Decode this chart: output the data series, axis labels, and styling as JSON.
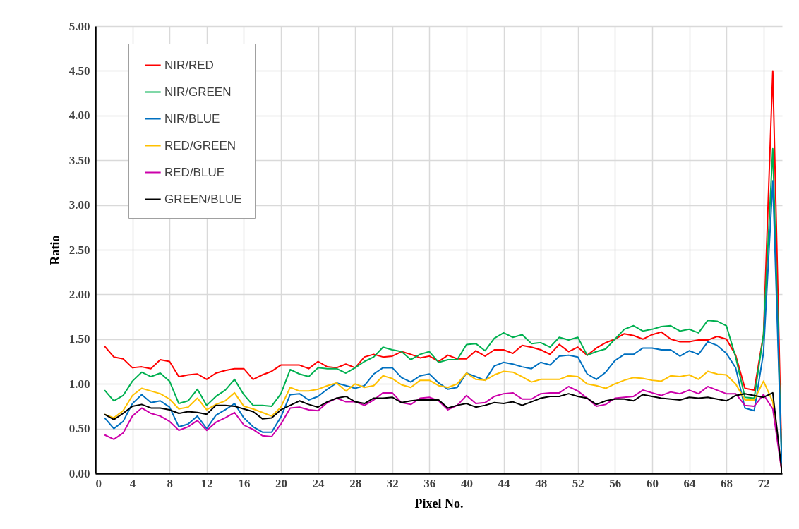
{
  "chart_data": {
    "type": "line",
    "xlabel": "Pixel No.",
    "ylabel": "Ratio",
    "x": [
      1,
      2,
      3,
      4,
      5,
      6,
      7,
      8,
      9,
      10,
      11,
      12,
      13,
      14,
      15,
      16,
      17,
      18,
      19,
      20,
      21,
      22,
      23,
      24,
      25,
      26,
      27,
      28,
      29,
      30,
      31,
      32,
      33,
      34,
      35,
      36,
      37,
      38,
      39,
      40,
      41,
      42,
      43,
      44,
      45,
      46,
      47,
      48,
      49,
      50,
      51,
      52,
      53,
      54,
      55,
      56,
      57,
      58,
      59,
      60,
      61,
      62,
      63,
      64,
      65,
      66,
      67,
      68,
      69,
      70,
      71,
      72,
      73,
      74
    ],
    "series": [
      {
        "name": "NIR/RED",
        "color": "#ff0000",
        "values": [
          1.42,
          1.3,
          1.28,
          1.18,
          1.19,
          1.17,
          1.27,
          1.25,
          1.08,
          1.1,
          1.11,
          1.05,
          1.12,
          1.15,
          1.17,
          1.17,
          1.05,
          1.1,
          1.14,
          1.21,
          1.21,
          1.21,
          1.17,
          1.25,
          1.19,
          1.18,
          1.22,
          1.18,
          1.3,
          1.33,
          1.3,
          1.31,
          1.36,
          1.33,
          1.29,
          1.31,
          1.25,
          1.32,
          1.28,
          1.28,
          1.37,
          1.31,
          1.38,
          1.38,
          1.34,
          1.43,
          1.41,
          1.38,
          1.33,
          1.44,
          1.36,
          1.41,
          1.32,
          1.4,
          1.46,
          1.5,
          1.56,
          1.54,
          1.5,
          1.55,
          1.58,
          1.5,
          1.47,
          1.47,
          1.49,
          1.49,
          1.53,
          1.5,
          1.32,
          0.95,
          0.93,
          1.55,
          4.5,
          0
        ]
      },
      {
        "name": "NIR/GREEN",
        "color": "#00b050",
        "values": [
          0.93,
          0.81,
          0.87,
          1.03,
          1.13,
          1.08,
          1.12,
          1.03,
          0.78,
          0.81,
          0.94,
          0.76,
          0.86,
          0.93,
          1.05,
          0.88,
          0.76,
          0.76,
          0.75,
          0.89,
          1.16,
          1.11,
          1.08,
          1.18,
          1.17,
          1.17,
          1.12,
          1.18,
          1.25,
          1.3,
          1.41,
          1.38,
          1.36,
          1.27,
          1.33,
          1.36,
          1.24,
          1.27,
          1.27,
          1.44,
          1.45,
          1.37,
          1.51,
          1.57,
          1.52,
          1.55,
          1.45,
          1.46,
          1.41,
          1.52,
          1.49,
          1.52,
          1.32,
          1.36,
          1.39,
          1.5,
          1.61,
          1.65,
          1.59,
          1.61,
          1.64,
          1.65,
          1.59,
          1.61,
          1.57,
          1.71,
          1.7,
          1.65,
          1.3,
          0.85,
          0.84,
          1.55,
          3.63,
          0
        ]
      },
      {
        "name": "NIR/BLUE",
        "color": "#0070c0",
        "values": [
          0.62,
          0.5,
          0.58,
          0.78,
          0.88,
          0.79,
          0.81,
          0.74,
          0.52,
          0.55,
          0.64,
          0.5,
          0.65,
          0.71,
          0.78,
          0.62,
          0.52,
          0.46,
          0.46,
          0.63,
          0.88,
          0.89,
          0.82,
          0.86,
          0.94,
          1.01,
          0.98,
          0.95,
          0.98,
          1.11,
          1.18,
          1.18,
          1.07,
          1.02,
          1.09,
          1.11,
          1.01,
          0.94,
          0.96,
          1.12,
          1.08,
          1.04,
          1.2,
          1.24,
          1.22,
          1.19,
          1.17,
          1.24,
          1.21,
          1.31,
          1.32,
          1.3,
          1.11,
          1.05,
          1.13,
          1.26,
          1.33,
          1.33,
          1.4,
          1.4,
          1.38,
          1.38,
          1.31,
          1.37,
          1.33,
          1.47,
          1.43,
          1.34,
          1.18,
          0.73,
          0.7,
          1.35,
          3.27,
          0
        ]
      },
      {
        "name": "RED/GREEN",
        "color": "#ffc000",
        "values": [
          0.66,
          0.62,
          0.7,
          0.87,
          0.95,
          0.92,
          0.89,
          0.83,
          0.72,
          0.74,
          0.84,
          0.71,
          0.77,
          0.81,
          0.9,
          0.75,
          0.72,
          0.68,
          0.64,
          0.74,
          0.96,
          0.92,
          0.92,
          0.94,
          0.98,
          1.01,
          0.92,
          1.0,
          0.96,
          0.98,
          1.09,
          1.06,
          0.99,
          0.96,
          1.04,
          1.04,
          0.98,
          0.96,
          1.0,
          1.12,
          1.05,
          1.04,
          1.1,
          1.14,
          1.13,
          1.08,
          1.02,
          1.05,
          1.05,
          1.05,
          1.09,
          1.08,
          1.0,
          0.98,
          0.95,
          1.0,
          1.04,
          1.07,
          1.06,
          1.04,
          1.03,
          1.09,
          1.08,
          1.1,
          1.05,
          1.14,
          1.11,
          1.1,
          1.0,
          0.82,
          0.82,
          1.03,
          0.8,
          0
        ]
      },
      {
        "name": "RED/BLUE",
        "color": "#cc00aa",
        "values": [
          0.43,
          0.38,
          0.45,
          0.64,
          0.73,
          0.67,
          0.64,
          0.58,
          0.48,
          0.52,
          0.59,
          0.48,
          0.57,
          0.62,
          0.68,
          0.54,
          0.49,
          0.42,
          0.41,
          0.55,
          0.73,
          0.74,
          0.71,
          0.7,
          0.79,
          0.84,
          0.8,
          0.8,
          0.76,
          0.82,
          0.9,
          0.9,
          0.79,
          0.77,
          0.84,
          0.85,
          0.81,
          0.71,
          0.76,
          0.87,
          0.78,
          0.79,
          0.86,
          0.89,
          0.9,
          0.83,
          0.83,
          0.89,
          0.9,
          0.9,
          0.97,
          0.92,
          0.84,
          0.75,
          0.77,
          0.84,
          0.85,
          0.86,
          0.93,
          0.9,
          0.87,
          0.91,
          0.89,
          0.93,
          0.89,
          0.97,
          0.93,
          0.89,
          0.89,
          0.76,
          0.75,
          0.88,
          0.72,
          0
        ]
      },
      {
        "name": "GREEN/BLUE",
        "color": "#000000",
        "values": [
          0.66,
          0.6,
          0.67,
          0.75,
          0.77,
          0.73,
          0.73,
          0.71,
          0.67,
          0.69,
          0.68,
          0.66,
          0.76,
          0.76,
          0.75,
          0.72,
          0.69,
          0.61,
          0.62,
          0.71,
          0.76,
          0.81,
          0.77,
          0.74,
          0.8,
          0.84,
          0.86,
          0.8,
          0.78,
          0.84,
          0.84,
          0.85,
          0.79,
          0.81,
          0.82,
          0.82,
          0.82,
          0.73,
          0.76,
          0.78,
          0.74,
          0.76,
          0.79,
          0.78,
          0.8,
          0.76,
          0.8,
          0.84,
          0.86,
          0.86,
          0.89,
          0.86,
          0.84,
          0.77,
          0.81,
          0.83,
          0.83,
          0.81,
          0.88,
          0.86,
          0.84,
          0.83,
          0.82,
          0.85,
          0.84,
          0.85,
          0.83,
          0.81,
          0.87,
          0.89,
          0.87,
          0.85,
          0.9,
          0
        ]
      }
    ],
    "xlim": [
      0,
      74
    ],
    "xticks": [
      0,
      4,
      8,
      12,
      16,
      20,
      24,
      28,
      32,
      36,
      40,
      44,
      48,
      52,
      56,
      60,
      64,
      68,
      72
    ],
    "ylim": [
      0,
      5
    ],
    "yticks": [
      {
        "value": 0,
        "label": "0.00"
      },
      {
        "value": 0.5,
        "label": "0.50"
      },
      {
        "value": 1,
        "label": "1.00"
      },
      {
        "value": 1.5,
        "label": "1.50"
      },
      {
        "value": 2,
        "label": "2.00"
      },
      {
        "value": 2.5,
        "label": "2.50"
      },
      {
        "value": 3,
        "label": "3.00"
      },
      {
        "value": 3.5,
        "label": "3.50"
      },
      {
        "value": 4,
        "label": "4.00"
      },
      {
        "value": 4.5,
        "label": "4.50"
      },
      {
        "value": 5,
        "label": "5.00"
      }
    ],
    "grid": true,
    "legend": "top left",
    "marker": "none",
    "line_style": "solid"
  }
}
